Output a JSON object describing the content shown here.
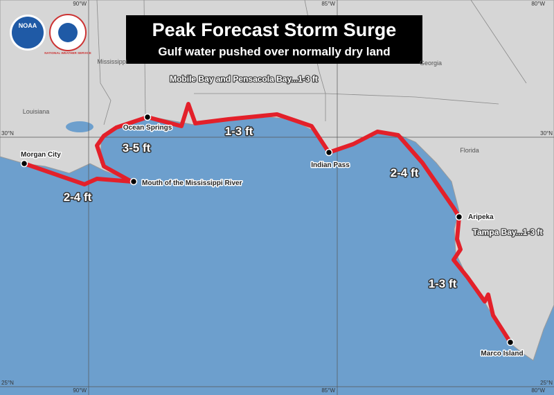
{
  "header": {
    "title": "Peak Forecast Storm Surge",
    "subtitle": "Gulf water pushed over normally dry land",
    "logos": [
      "NOAA",
      "NATIONAL WEATHER SERVICE"
    ]
  },
  "graticule": {
    "longitudes": [
      "90°W",
      "85°W",
      "80°W"
    ],
    "latitudes": [
      "30°N",
      "25°N"
    ]
  },
  "regions": [
    "Mississippi",
    "Louisiana",
    "Georgia",
    "Florida"
  ],
  "points": [
    "Morgan City",
    "Mouth of the Mississippi River",
    "Ocean Springs",
    "Indian Pass",
    "Aripeka",
    "Marco Island"
  ],
  "surge_labels": [
    "2-4 ft",
    "3-5 ft",
    "1-3 ft",
    "2-4 ft",
    "1-3 ft"
  ],
  "bay_labels": [
    "Mobile Bay and Pensacola Bay...1-3 ft",
    "Tampa Bay...1-3 ft"
  ]
}
